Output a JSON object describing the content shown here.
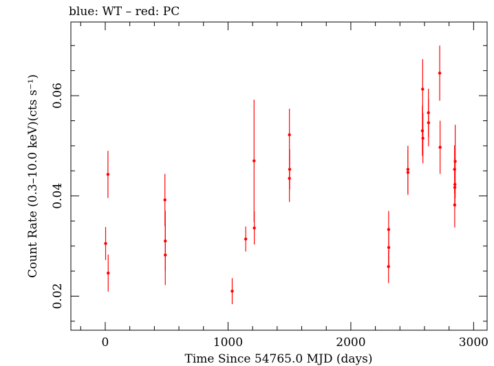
{
  "chart_data": {
    "type": "scatter",
    "title": "blue: WT – red: PC",
    "xlabel": "Time Since 54765.0 MJD (days)",
    "ylabel": "Count Rate (0.3–10.0 keV)(cts s⁻¹)",
    "xlim": [
      -280,
      3110
    ],
    "ylim": [
      0.0132,
      0.0747
    ],
    "x_ticks": [
      0,
      1000,
      2000,
      3000
    ],
    "x_tick_labels": [
      "0",
      "1000",
      "2000",
      "3000"
    ],
    "y_ticks": [
      0.02,
      0.04,
      0.06
    ],
    "y_tick_labels": [
      "0.02",
      "0.04",
      "0.06"
    ],
    "grid": false,
    "series": [
      {
        "color": "#ff0000",
        "points": [
          {
            "x": 3,
            "y": 0.0305,
            "err": 0.0033
          },
          {
            "x": 22,
            "y": 0.0443,
            "err": 0.0047
          },
          {
            "x": 24,
            "y": 0.0246,
            "err": 0.0037
          },
          {
            "x": 486,
            "y": 0.0392,
            "err": 0.0052
          },
          {
            "x": 489,
            "y": 0.031,
            "err": 0.006
          },
          {
            "x": 489,
            "y": 0.0282,
            "err": 0.006
          },
          {
            "x": 1034,
            "y": 0.021,
            "err": 0.0026
          },
          {
            "x": 1144,
            "y": 0.0314,
            "err": 0.0025
          },
          {
            "x": 1212,
            "y": 0.047,
            "err": 0.0122
          },
          {
            "x": 1214,
            "y": 0.0336,
            "err": 0.0033
          },
          {
            "x": 1500,
            "y": 0.0522,
            "err": 0.0052
          },
          {
            "x": 1502,
            "y": 0.0453,
            "err": 0.004
          },
          {
            "x": 1500,
            "y": 0.0435,
            "err": 0.0047
          },
          {
            "x": 2308,
            "y": 0.0333,
            "err": 0.0037
          },
          {
            "x": 2309,
            "y": 0.0297,
            "err": 0.004
          },
          {
            "x": 2307,
            "y": 0.0259,
            "err": 0.0033
          },
          {
            "x": 2465,
            "y": 0.0453,
            "err": 0.0047
          },
          {
            "x": 2465,
            "y": 0.0447,
            "err": 0.0045
          },
          {
            "x": 2585,
            "y": 0.0613,
            "err": 0.006
          },
          {
            "x": 2583,
            "y": 0.053,
            "err": 0.005
          },
          {
            "x": 2587,
            "y": 0.0515,
            "err": 0.005
          },
          {
            "x": 2632,
            "y": 0.0566,
            "err": 0.0048
          },
          {
            "x": 2633,
            "y": 0.0546,
            "err": 0.0047
          },
          {
            "x": 2724,
            "y": 0.0645,
            "err": 0.0055
          },
          {
            "x": 2727,
            "y": 0.0497,
            "err": 0.0053
          },
          {
            "x": 2845,
            "y": 0.0453,
            "err": 0.0048
          },
          {
            "x": 2850,
            "y": 0.0469,
            "err": 0.0073
          },
          {
            "x": 2848,
            "y": 0.0423,
            "err": 0.004
          },
          {
            "x": 2847,
            "y": 0.0417,
            "err": 0.004
          },
          {
            "x": 2846,
            "y": 0.0382,
            "err": 0.0045
          }
        ]
      }
    ]
  }
}
